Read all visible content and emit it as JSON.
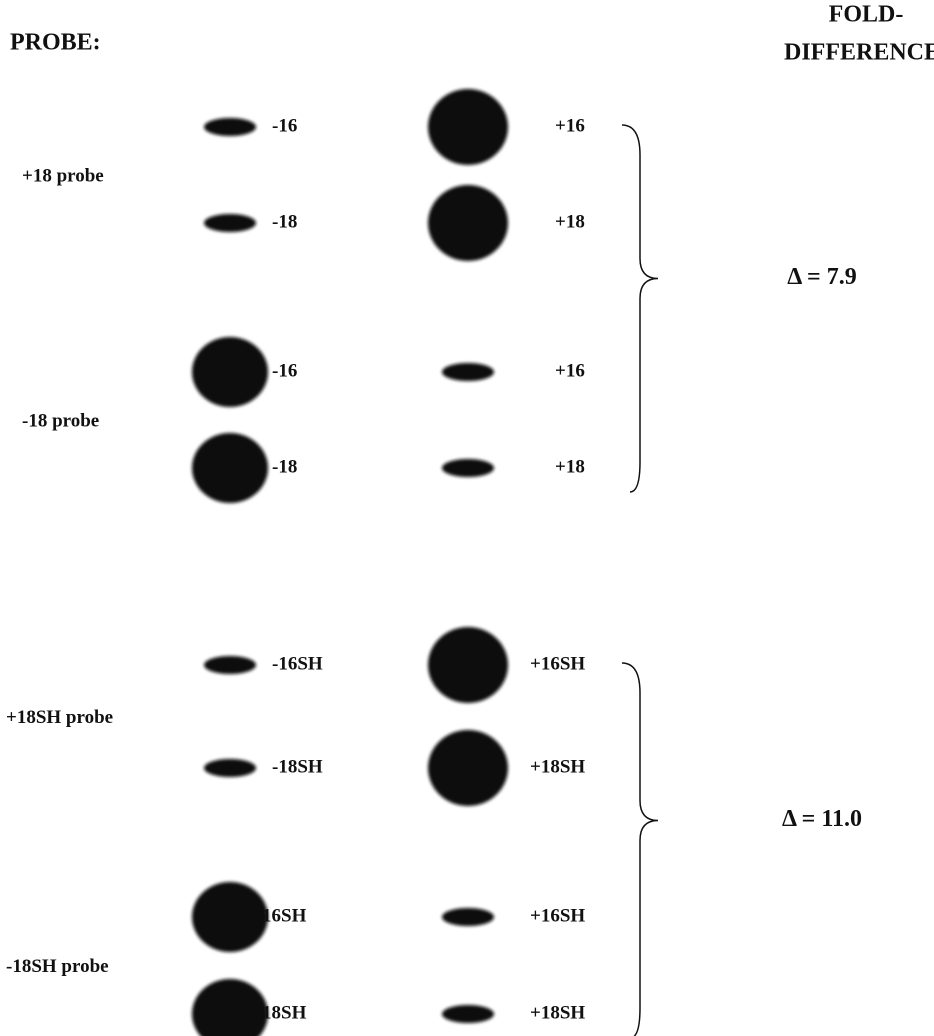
{
  "header": {
    "probe": "PROBE:",
    "fold_difference": [
      "FOLD-",
      "DIFFERENCE:"
    ]
  },
  "blocks": [
    {
      "probes": [
        "+18 probe",
        "-18 probe"
      ],
      "rows": [
        {
          "left": "-16",
          "right": "+16"
        },
        {
          "left": "-18",
          "right": "+18"
        },
        {
          "left": "-16",
          "right": "+16"
        },
        {
          "left": "-18",
          "right": "+18"
        }
      ],
      "delta": "Δ = 7.9"
    },
    {
      "probes": [
        "+18SH probe",
        "-18SH probe"
      ],
      "rows": [
        {
          "left": "-16SH",
          "right": "+16SH"
        },
        {
          "left": "-18SH",
          "right": "+18SH"
        },
        {
          "left": "16SH",
          "right": "+16SH"
        },
        {
          "left": "18SH",
          "right": "+18SH"
        }
      ],
      "delta": "Δ = 11.0"
    }
  ]
}
